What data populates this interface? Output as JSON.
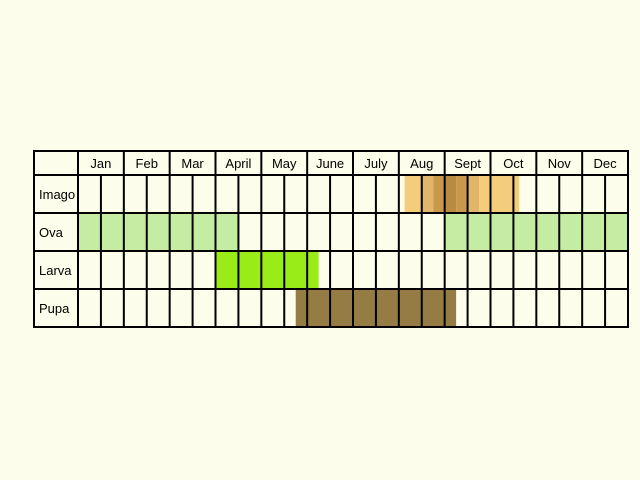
{
  "months": [
    "Jan",
    "Feb",
    "Mar",
    "April",
    "May",
    "June",
    "July",
    "Aug",
    "Sept",
    "Oct",
    "Nov",
    "Dec"
  ],
  "stages": [
    {
      "label": "Imago",
      "segments": [
        {
          "start": 7.125,
          "end": 7.5,
          "color": "#f3cd7c"
        },
        {
          "start": 7.5,
          "end": 7.75,
          "color": "#e1b66a"
        },
        {
          "start": 7.75,
          "end": 8.0,
          "color": "#c9984c"
        },
        {
          "start": 8.0,
          "end": 8.25,
          "color": "#b98a41"
        },
        {
          "start": 8.25,
          "end": 8.5,
          "color": "#c9984c"
        },
        {
          "start": 8.5,
          "end": 8.75,
          "color": "#e1b66a"
        },
        {
          "start": 8.75,
          "end": 9.625,
          "color": "#f3cd7c"
        }
      ]
    },
    {
      "label": "Ova",
      "segments": [
        {
          "start": 0,
          "end": 3.5,
          "color": "#c4eca2"
        },
        {
          "start": 8,
          "end": 12,
          "color": "#c4eca2"
        }
      ]
    },
    {
      "label": "Larva",
      "segments": [
        {
          "start": 3,
          "end": 5.25,
          "color": "#99ec18"
        }
      ]
    },
    {
      "label": "Pupa",
      "segments": [
        {
          "start": 4.75,
          "end": 8.25,
          "color": "#957c44"
        }
      ]
    }
  ],
  "colors": {
    "background": "#fdfdeb",
    "grid": "#000000"
  }
}
